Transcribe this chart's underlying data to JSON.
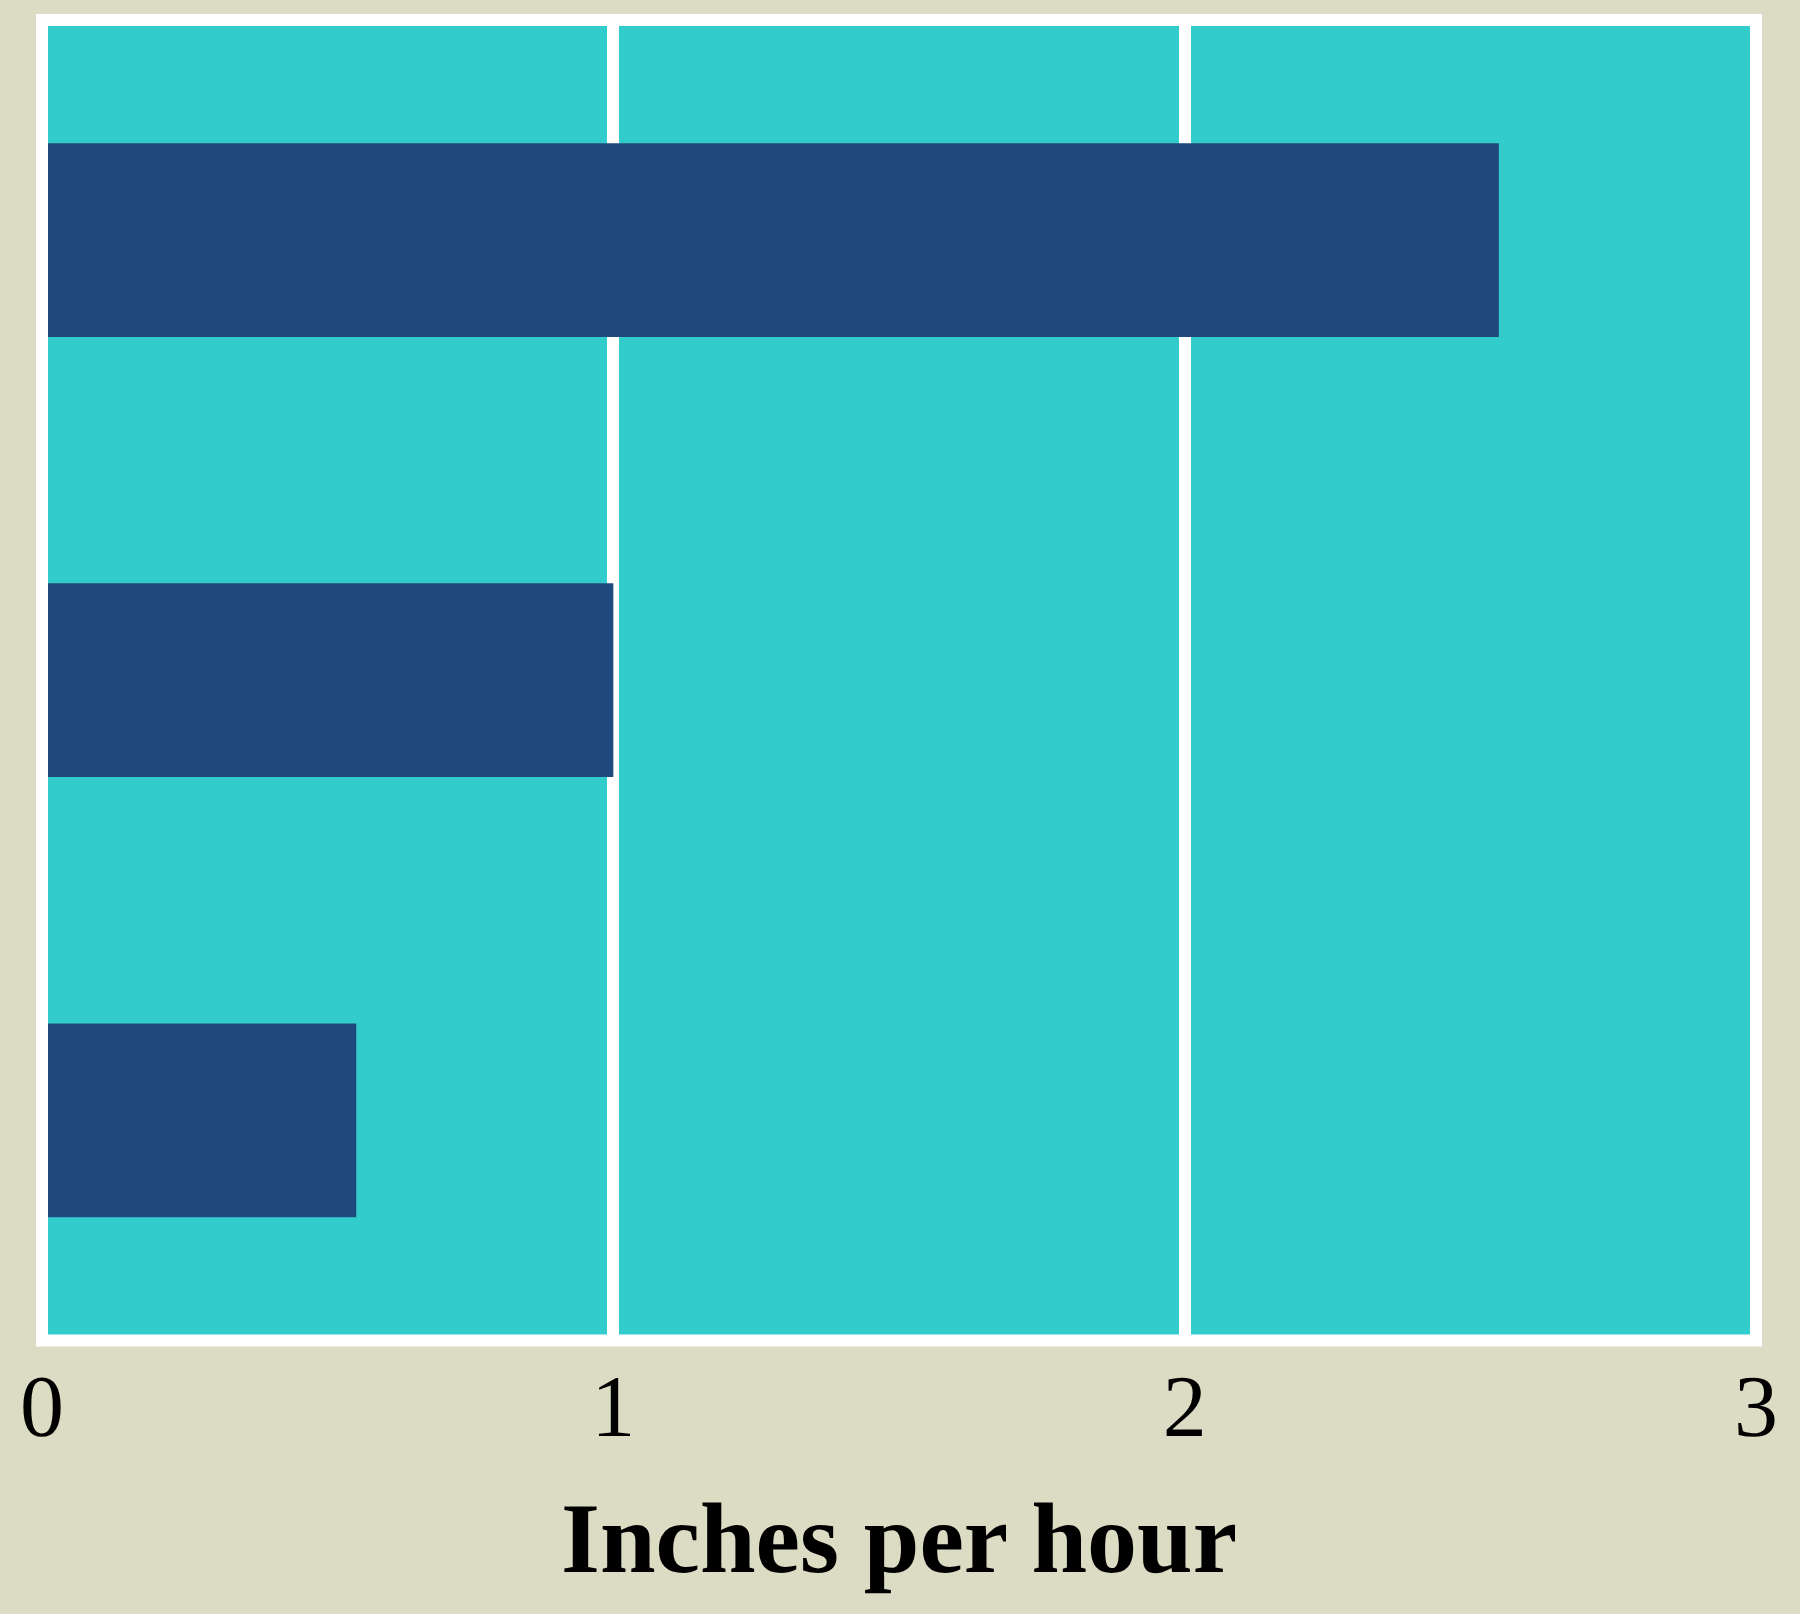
{
  "chart_data": {
    "type": "bar",
    "orientation": "horizontal",
    "xlabel": "Inches per hour",
    "categories": [
      null,
      null,
      null
    ],
    "values": [
      2.55,
      1.0,
      0.55
    ],
    "color": "#1f497d",
    "xlim": [
      0,
      3
    ],
    "xticks": [
      0,
      1,
      2,
      3
    ],
    "grid": "x",
    "tick_labels": "x"
  }
}
